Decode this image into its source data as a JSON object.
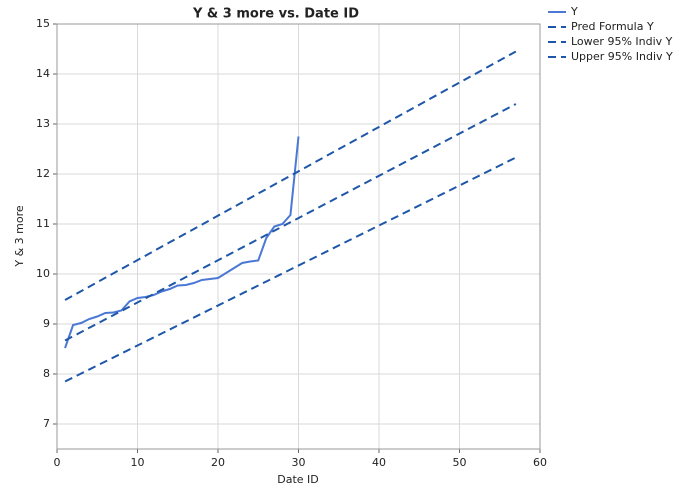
{
  "chart_data": {
    "type": "line",
    "title": "Y & 3 more vs. Date ID",
    "x_label": "Date ID",
    "y_label": "Y & 3 more",
    "xlim": [
      0,
      60
    ],
    "xticks": [
      0,
      10,
      20,
      30,
      40,
      50,
      60
    ],
    "ylim": [
      6.5,
      15
    ],
    "yticks": [
      7,
      8,
      9,
      10,
      11,
      12,
      13,
      14,
      15
    ],
    "grid": true,
    "legend": "right",
    "series": [
      {
        "name": "Y",
        "color": "#4a78d4",
        "dashed": false,
        "x": [
          1,
          2,
          3,
          4,
          5,
          6,
          7,
          8,
          9,
          10,
          11,
          12,
          13,
          14,
          15,
          16,
          17,
          18,
          19,
          20,
          21,
          22,
          23,
          24,
          25,
          26,
          27,
          28,
          29,
          30
        ],
        "values": [
          8.52,
          8.98,
          9.02,
          9.1,
          9.15,
          9.22,
          9.23,
          9.27,
          9.45,
          9.52,
          9.54,
          9.58,
          9.65,
          9.7,
          9.77,
          9.78,
          9.82,
          9.88,
          9.9,
          9.92,
          10.02,
          10.12,
          10.22,
          10.25,
          10.27,
          10.72,
          10.95,
          11.0,
          11.18,
          12.75
        ]
      },
      {
        "name": "Pred Formula Y",
        "color": "#1f57a8",
        "dashed": true,
        "x": [
          1,
          57
        ],
        "values": [
          8.67,
          13.4
        ]
      },
      {
        "name": "Lower 95% Indiv Y",
        "color": "#1f57a8",
        "dashed": true,
        "x": [
          1,
          57
        ],
        "values": [
          7.85,
          12.33
        ]
      },
      {
        "name": "Upper 95% Indiv Y",
        "color": "#1f57a8",
        "dashed": true,
        "x": [
          1,
          57
        ],
        "values": [
          9.48,
          14.45
        ]
      }
    ]
  }
}
